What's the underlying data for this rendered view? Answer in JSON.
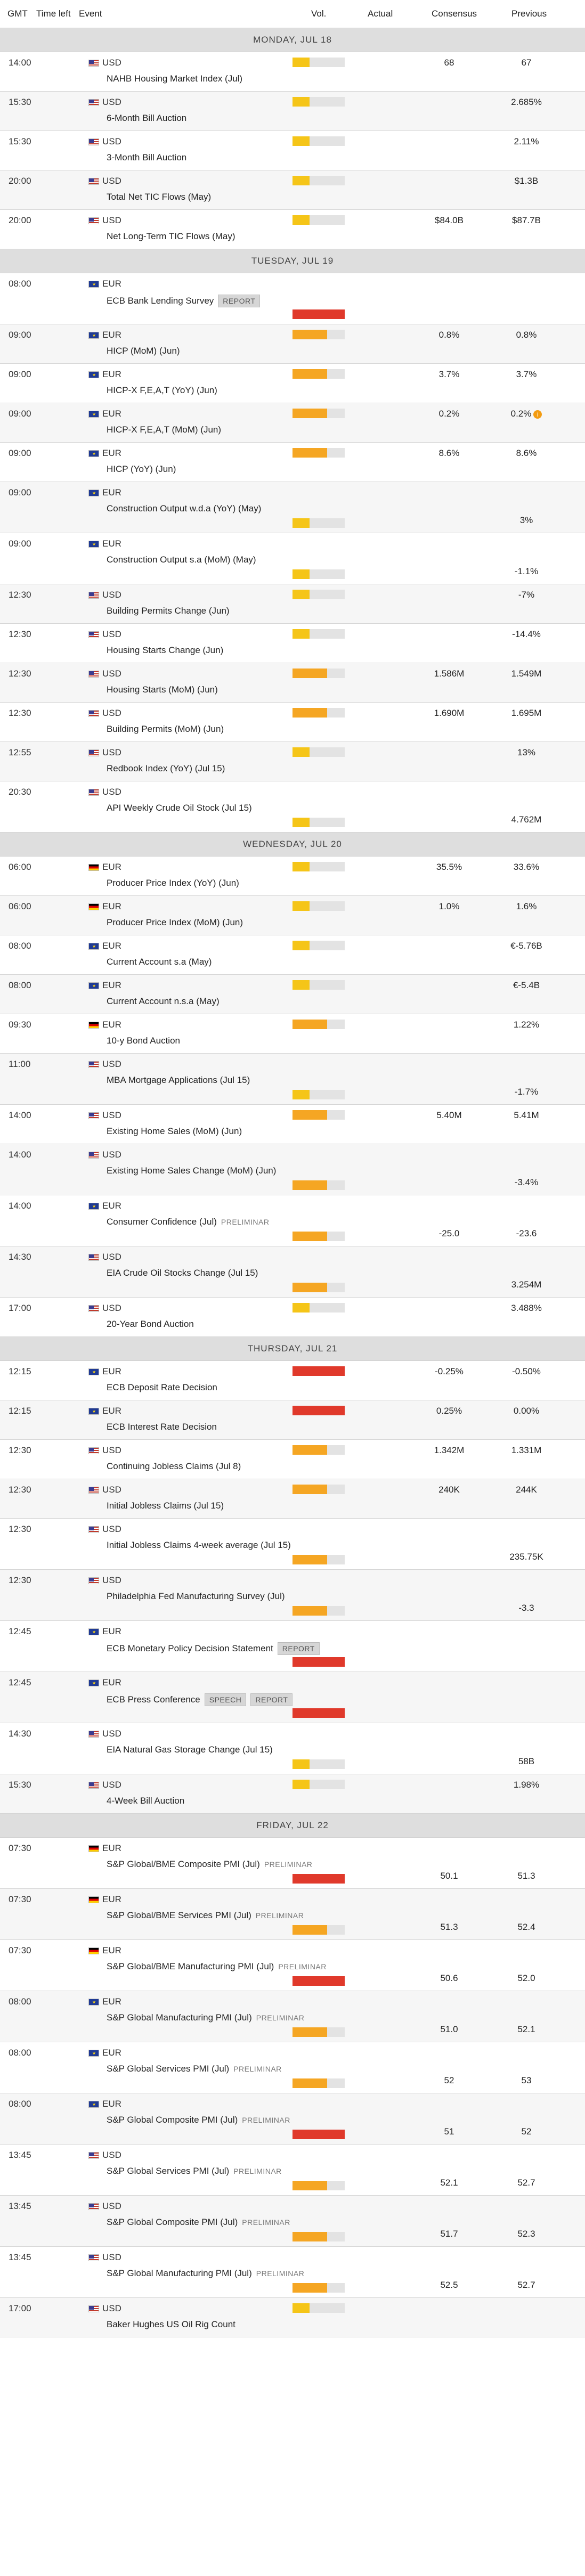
{
  "columns": {
    "gmt": "GMT",
    "time_left": "Time left",
    "event": "Event",
    "vol": "Vol.",
    "actual": "Actual",
    "consensus": "Consensus",
    "previous": "Previous"
  },
  "colors": {
    "low": "#f5c518",
    "medium": "#f5a623",
    "high": "#e0392b",
    "empty": "#e3e3e3"
  },
  "days": [
    {
      "label": "MONDAY, JUL 18",
      "events": [
        {
          "time": "14:00",
          "currency": "USD",
          "flag": "us",
          "name": "NAHB Housing Market Index (Jul)",
          "vol": "low",
          "consensus": "68",
          "previous": "67"
        },
        {
          "time": "15:30",
          "currency": "USD",
          "flag": "us",
          "name": "6-Month Bill Auction",
          "vol": "low",
          "consensus": "",
          "previous": "2.685%"
        },
        {
          "time": "15:30",
          "currency": "USD",
          "flag": "us",
          "name": "3-Month Bill Auction",
          "vol": "low",
          "consensus": "",
          "previous": "2.11%"
        },
        {
          "time": "20:00",
          "currency": "USD",
          "flag": "us",
          "name": "Total Net TIC Flows (May)",
          "vol": "low",
          "consensus": "",
          "previous": "$1.3B"
        },
        {
          "time": "20:00",
          "currency": "USD",
          "flag": "us",
          "name": "Net Long-Term TIC Flows (May)",
          "vol": "low",
          "consensus": "$84.0B",
          "previous": "$87.7B"
        }
      ]
    },
    {
      "label": "TUESDAY, JUL 19",
      "events": [
        {
          "time": "08:00",
          "currency": "EUR",
          "flag": "eu",
          "name": "ECB Bank Lending Survey",
          "tags": [
            "REPORT"
          ],
          "vol": "high",
          "consensus": "",
          "previous": "",
          "tall": true
        },
        {
          "time": "09:00",
          "currency": "EUR",
          "flag": "eu",
          "name": "HICP (MoM) (Jun)",
          "vol": "medium",
          "consensus": "0.8%",
          "previous": "0.8%"
        },
        {
          "time": "09:00",
          "currency": "EUR",
          "flag": "eu",
          "name": "HICP-X F,E,A,T (YoY) (Jun)",
          "vol": "medium",
          "consensus": "3.7%",
          "previous": "3.7%"
        },
        {
          "time": "09:00",
          "currency": "EUR",
          "flag": "eu",
          "name": "HICP-X F,E,A,T (MoM) (Jun)",
          "vol": "medium",
          "consensus": "0.2%",
          "previous": "0.2%",
          "info": true
        },
        {
          "time": "09:00",
          "currency": "EUR",
          "flag": "eu",
          "name": "HICP (YoY) (Jun)",
          "vol": "medium",
          "consensus": "8.6%",
          "previous": "8.6%"
        },
        {
          "time": "09:00",
          "currency": "EUR",
          "flag": "eu",
          "name": "Construction Output w.d.a (YoY) (May)",
          "vol": "low",
          "consensus": "",
          "previous": "3%",
          "tall": true
        },
        {
          "time": "09:00",
          "currency": "EUR",
          "flag": "eu",
          "name": "Construction Output s.a (MoM) (May)",
          "vol": "low",
          "consensus": "",
          "previous": "-1.1%",
          "tall": true
        },
        {
          "time": "12:30",
          "currency": "USD",
          "flag": "us",
          "name": "Building Permits Change (Jun)",
          "vol": "low",
          "consensus": "",
          "previous": "-7%"
        },
        {
          "time": "12:30",
          "currency": "USD",
          "flag": "us",
          "name": "Housing Starts Change (Jun)",
          "vol": "low",
          "consensus": "",
          "previous": "-14.4%"
        },
        {
          "time": "12:30",
          "currency": "USD",
          "flag": "us",
          "name": "Housing Starts (MoM) (Jun)",
          "vol": "medium",
          "consensus": "1.586M",
          "previous": "1.549M"
        },
        {
          "time": "12:30",
          "currency": "USD",
          "flag": "us",
          "name": "Building Permits (MoM) (Jun)",
          "vol": "medium",
          "consensus": "1.690M",
          "previous": "1.695M"
        },
        {
          "time": "12:55",
          "currency": "USD",
          "flag": "us",
          "name": "Redbook Index (YoY) (Jul 15)",
          "vol": "low",
          "consensus": "",
          "previous": "13%"
        },
        {
          "time": "20:30",
          "currency": "USD",
          "flag": "us",
          "name": "API Weekly Crude Oil Stock (Jul 15)",
          "vol": "low",
          "consensus": "",
          "previous": "4.762M",
          "tall": true
        }
      ]
    },
    {
      "label": "WEDNESDAY, JUL 20",
      "events": [
        {
          "time": "06:00",
          "currency": "EUR",
          "flag": "de",
          "name": "Producer Price Index (YoY) (Jun)",
          "vol": "low",
          "consensus": "35.5%",
          "previous": "33.6%"
        },
        {
          "time": "06:00",
          "currency": "EUR",
          "flag": "de",
          "name": "Producer Price Index (MoM) (Jun)",
          "vol": "low",
          "consensus": "1.0%",
          "previous": "1.6%"
        },
        {
          "time": "08:00",
          "currency": "EUR",
          "flag": "eu",
          "name": "Current Account s.a (May)",
          "vol": "low",
          "consensus": "",
          "previous": "€-5.76B"
        },
        {
          "time": "08:00",
          "currency": "EUR",
          "flag": "eu",
          "name": "Current Account n.s.a (May)",
          "vol": "low",
          "consensus": "",
          "previous": "€-5.4B"
        },
        {
          "time": "09:30",
          "currency": "EUR",
          "flag": "de",
          "name": "10-y Bond Auction",
          "vol": "medium",
          "consensus": "",
          "previous": "1.22%"
        },
        {
          "time": "11:00",
          "currency": "USD",
          "flag": "us",
          "name": "MBA Mortgage Applications (Jul 15)",
          "vol": "low",
          "consensus": "",
          "previous": "-1.7%",
          "tall": true
        },
        {
          "time": "14:00",
          "currency": "USD",
          "flag": "us",
          "name": "Existing Home Sales (MoM) (Jun)",
          "vol": "medium",
          "consensus": "5.40M",
          "previous": "5.41M"
        },
        {
          "time": "14:00",
          "currency": "USD",
          "flag": "us",
          "name": "Existing Home Sales Change (MoM) (Jun)",
          "vol": "medium",
          "consensus": "",
          "previous": "-3.4%",
          "tall": true
        },
        {
          "time": "14:00",
          "currency": "EUR",
          "flag": "eu",
          "name": "Consumer Confidence (Jul)",
          "tags_light": [
            "PRELIMINAR"
          ],
          "vol": "medium",
          "consensus": "-25.0",
          "previous": "-23.6",
          "tall": true
        },
        {
          "time": "14:30",
          "currency": "USD",
          "flag": "us",
          "name": "EIA Crude Oil Stocks Change (Jul 15)",
          "vol": "medium",
          "consensus": "",
          "previous": "3.254M",
          "tall": true
        },
        {
          "time": "17:00",
          "currency": "USD",
          "flag": "us",
          "name": "20-Year Bond Auction",
          "vol": "low",
          "consensus": "",
          "previous": "3.488%"
        }
      ]
    },
    {
      "label": "THURSDAY, JUL 21",
      "events": [
        {
          "time": "12:15",
          "currency": "EUR",
          "flag": "eu",
          "name": "ECB Deposit Rate Decision",
          "vol": "high",
          "consensus": "-0.25%",
          "previous": "-0.50%"
        },
        {
          "time": "12:15",
          "currency": "EUR",
          "flag": "eu",
          "name": "ECB Interest Rate Decision",
          "vol": "high",
          "consensus": "0.25%",
          "previous": "0.00%"
        },
        {
          "time": "12:30",
          "currency": "USD",
          "flag": "us",
          "name": "Continuing Jobless Claims (Jul 8)",
          "vol": "medium",
          "consensus": "1.342M",
          "previous": "1.331M"
        },
        {
          "time": "12:30",
          "currency": "USD",
          "flag": "us",
          "name": "Initial Jobless Claims (Jul 15)",
          "vol": "medium",
          "consensus": "240K",
          "previous": "244K"
        },
        {
          "time": "12:30",
          "currency": "USD",
          "flag": "us",
          "name": "Initial Jobless Claims 4-week average (Jul 15)",
          "vol": "medium",
          "consensus": "",
          "previous": "235.75K",
          "tall": true
        },
        {
          "time": "12:30",
          "currency": "USD",
          "flag": "us",
          "name": "Philadelphia Fed Manufacturing Survey (Jul)",
          "vol": "medium",
          "consensus": "",
          "previous": "-3.3",
          "tall": true
        },
        {
          "time": "12:45",
          "currency": "EUR",
          "flag": "eu",
          "name": "ECB Monetary Policy Decision Statement",
          "tags": [
            "REPORT"
          ],
          "vol": "high",
          "consensus": "",
          "previous": "",
          "tall": true
        },
        {
          "time": "12:45",
          "currency": "EUR",
          "flag": "eu",
          "name": "ECB Press Conference",
          "tags": [
            "SPEECH",
            "REPORT"
          ],
          "vol": "high",
          "consensus": "",
          "previous": "",
          "tall": true
        },
        {
          "time": "14:30",
          "currency": "USD",
          "flag": "us",
          "name": "EIA Natural Gas Storage Change (Jul 15)",
          "vol": "low",
          "consensus": "",
          "previous": "58B",
          "tall": true
        },
        {
          "time": "15:30",
          "currency": "USD",
          "flag": "us",
          "name": "4-Week Bill Auction",
          "vol": "low",
          "consensus": "",
          "previous": "1.98%"
        }
      ]
    },
    {
      "label": "FRIDAY, JUL 22",
      "events": [
        {
          "time": "07:30",
          "currency": "EUR",
          "flag": "de",
          "name": "S&P Global/BME Composite PMI (Jul)",
          "tags_light": [
            "PRELIMINAR"
          ],
          "vol": "high",
          "consensus": "50.1",
          "previous": "51.3",
          "tall": true
        },
        {
          "time": "07:30",
          "currency": "EUR",
          "flag": "de",
          "name": "S&P Global/BME Services PMI (Jul)",
          "tags_light": [
            "PRELIMINAR"
          ],
          "vol": "medium",
          "consensus": "51.3",
          "previous": "52.4",
          "tall": true
        },
        {
          "time": "07:30",
          "currency": "EUR",
          "flag": "de",
          "name": "S&P Global/BME Manufacturing PMI (Jul)",
          "tags_light": [
            "PRELIMINAR"
          ],
          "vol": "high",
          "consensus": "50.6",
          "previous": "52.0",
          "tall": true
        },
        {
          "time": "08:00",
          "currency": "EUR",
          "flag": "eu",
          "name": "S&P Global Manufacturing PMI (Jul)",
          "tags_light": [
            "PRELIMINAR"
          ],
          "vol": "medium",
          "consensus": "51.0",
          "previous": "52.1",
          "tall": true
        },
        {
          "time": "08:00",
          "currency": "EUR",
          "flag": "eu",
          "name": "S&P Global Services PMI (Jul)",
          "tags_light": [
            "PRELIMINAR"
          ],
          "vol": "medium",
          "consensus": "52",
          "previous": "53",
          "tall": true
        },
        {
          "time": "08:00",
          "currency": "EUR",
          "flag": "eu",
          "name": "S&P Global Composite PMI (Jul)",
          "tags_light": [
            "PRELIMINAR"
          ],
          "vol": "high",
          "consensus": "51",
          "previous": "52",
          "tall": true
        },
        {
          "time": "13:45",
          "currency": "USD",
          "flag": "us",
          "name": "S&P Global Services PMI (Jul)",
          "tags_light": [
            "PRELIMINAR"
          ],
          "vol": "medium",
          "consensus": "52.1",
          "previous": "52.7",
          "tall": true
        },
        {
          "time": "13:45",
          "currency": "USD",
          "flag": "us",
          "name": "S&P Global Composite PMI (Jul)",
          "tags_light": [
            "PRELIMINAR"
          ],
          "vol": "medium",
          "consensus": "51.7",
          "previous": "52.3",
          "tall": true
        },
        {
          "time": "13:45",
          "currency": "USD",
          "flag": "us",
          "name": "S&P Global Manufacturing PMI (Jul)",
          "tags_light": [
            "PRELIMINAR"
          ],
          "vol": "medium",
          "consensus": "52.5",
          "previous": "52.7",
          "tall": true
        },
        {
          "time": "17:00",
          "currency": "USD",
          "flag": "us",
          "name": "Baker Hughes US Oil Rig Count",
          "vol": "low",
          "consensus": "",
          "previous": ""
        }
      ]
    }
  ]
}
